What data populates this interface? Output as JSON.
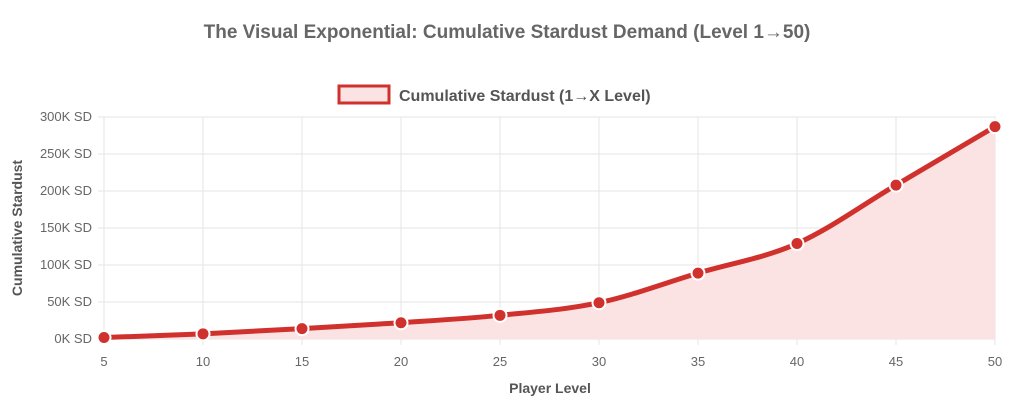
{
  "chart_data": {
    "type": "area",
    "title": "The Visual Exponential: Cumulative Stardust Demand (Level 1→50)",
    "xlabel": "Player Level",
    "ylabel": "Cumulative Stardust",
    "x": [
      5,
      10,
      15,
      20,
      25,
      30,
      35,
      40,
      45,
      50
    ],
    "series": [
      {
        "name": "Cumulative Stardust (1→X Level)",
        "values": [
          2000,
          7000,
          14000,
          22000,
          32000,
          49000,
          89000,
          129000,
          208000,
          287000
        ]
      }
    ],
    "xlim": [
      5,
      50
    ],
    "ylim": [
      0,
      300000
    ],
    "x_ticks": [
      "5",
      "10",
      "15",
      "20",
      "25",
      "30",
      "35",
      "40",
      "45",
      "50"
    ],
    "y_ticks": [
      "0K SD",
      "50K SD",
      "100K SD",
      "150K SD",
      "200K SD",
      "250K SD",
      "300K SD"
    ],
    "grid": true,
    "legend_position": "top",
    "colors": {
      "line": "#d0312d",
      "fill": "#fbe3e3",
      "grid": "#e6e6e6"
    }
  }
}
